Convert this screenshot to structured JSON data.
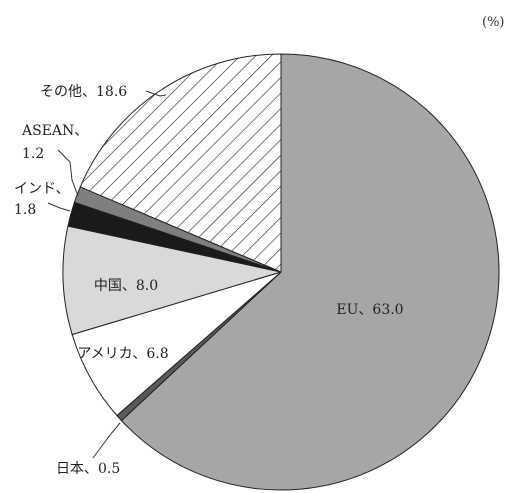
{
  "chart_data": {
    "type": "pie",
    "unit_label": "(%)",
    "title": "",
    "slices": [
      {
        "label": "EU",
        "value": 63.0,
        "display": "EU、63.0",
        "fill": "#a6a6a6",
        "pattern": "solid"
      },
      {
        "label": "日本",
        "value": 0.5,
        "display": "日本、0.5",
        "fill": "#595959",
        "pattern": "solid"
      },
      {
        "label": "アメリカ",
        "value": 6.8,
        "display": "アメリカ、6.8",
        "fill": "#ffffff",
        "pattern": "solid"
      },
      {
        "label": "中国",
        "value": 8.0,
        "display": "中国、8.0",
        "fill": "#d9d9d9",
        "pattern": "solid"
      },
      {
        "label": "インド",
        "value": 1.8,
        "display_lines": [
          "インド、",
          "1.8"
        ],
        "fill": "#1a1a1a",
        "pattern": "solid"
      },
      {
        "label": "ASEAN",
        "value": 1.2,
        "display_lines": [
          "ASEAN、",
          "1.2"
        ],
        "fill": "#7f7f7f",
        "pattern": "solid"
      },
      {
        "label": "その他",
        "value": 18.6,
        "display": "その他、18.6",
        "fill": "#ffffff",
        "pattern": "hatch"
      }
    ],
    "start_angle_deg": 0,
    "direction": "clockwise",
    "grid": false,
    "legend": "none"
  }
}
